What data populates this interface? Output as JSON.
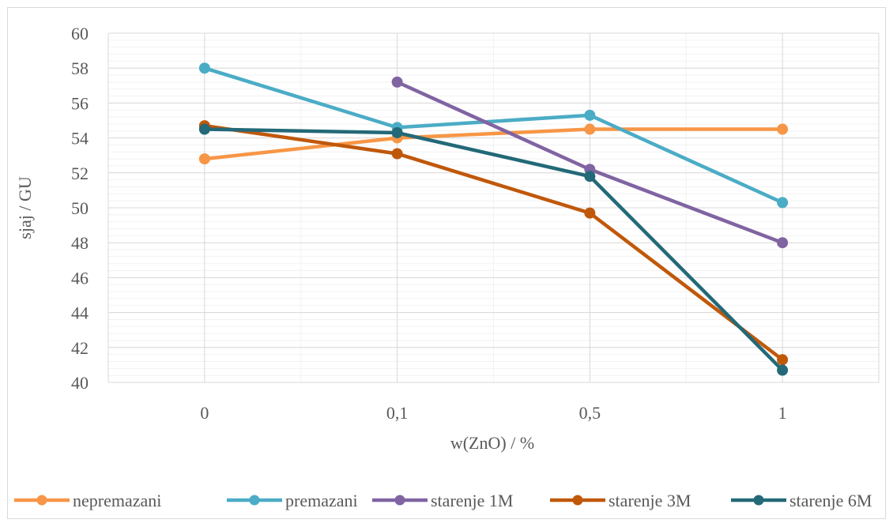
{
  "chart_data": {
    "type": "line",
    "xlabel": "w(ZnO) / %",
    "ylabel": "sjaj / GU",
    "categories": [
      "0",
      "0,1",
      "0,5",
      "1"
    ],
    "ylim": [
      40,
      60
    ],
    "y_ticks": [
      40,
      42,
      44,
      46,
      48,
      50,
      52,
      54,
      56,
      58,
      60
    ],
    "y_tick_labels": [
      "40",
      "42",
      "44",
      "46",
      "48",
      "50",
      "52",
      "54",
      "56",
      "58",
      "60"
    ],
    "grid": true,
    "legend_position": "bottom",
    "series": [
      {
        "name": "nepremazani",
        "color": "#f79646",
        "values": [
          52.8,
          54.0,
          54.5,
          54.5
        ]
      },
      {
        "name": "premazani",
        "color": "#4bacc6",
        "values": [
          58.0,
          54.6,
          55.3,
          50.3
        ]
      },
      {
        "name": "starenje 1M",
        "color": "#8064a2",
        "values": [
          null,
          57.2,
          52.2,
          48.0
        ]
      },
      {
        "name": "starenje 3M",
        "color": "#c0580a",
        "values": [
          54.7,
          53.1,
          49.7,
          41.3
        ]
      },
      {
        "name": "starenje 6M",
        "color": "#236977",
        "values": [
          54.5,
          54.3,
          51.8,
          40.7
        ]
      }
    ]
  }
}
